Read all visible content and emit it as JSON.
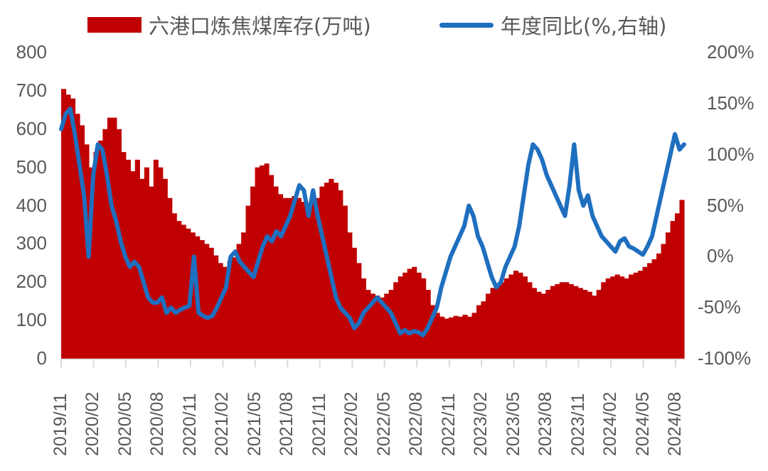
{
  "legend": {
    "bar_label": "六港口炼焦煤库存(万吨)",
    "line_label": "年度同比(%,右轴)"
  },
  "colors": {
    "bar": "#C00000",
    "line": "#1F6FBF",
    "axis_text": "#595959",
    "tick": "#D9D9D9"
  },
  "chart_data": {
    "type": "bar+line",
    "title": "",
    "legend_position": "top",
    "grid": false,
    "left_axis": {
      "label": "六港口炼焦煤库存(万吨)",
      "range": [
        0,
        800
      ],
      "ticks": [
        "0",
        "100",
        "200",
        "300",
        "400",
        "500",
        "600",
        "700",
        "800"
      ]
    },
    "right_axis": {
      "label": "年度同比(%,右轴)",
      "range": [
        -100,
        200
      ],
      "ticks": [
        "-100%",
        "-50%",
        "0%",
        "50%",
        "100%",
        "150%",
        "200%"
      ]
    },
    "x_ticks": [
      "2019/11",
      "2020/02",
      "2020/05",
      "2020/08",
      "2020/11",
      "2021/02",
      "2021/05",
      "2021/08",
      "2021/11",
      "2022/02",
      "2022/05",
      "2022/08",
      "2022/11",
      "2023/02",
      "2023/05",
      "2023/08",
      "2023/11",
      "2024/02",
      "2024/05",
      "2024/08"
    ],
    "x_tick_interval_weeks": 13,
    "series": [
      {
        "name": "六港口炼焦煤库存(万吨)",
        "type": "bar",
        "axis": "left",
        "frequency": "weekly (sampled ~biweekly from 2019/11)",
        "values": [
          705,
          690,
          680,
          640,
          610,
          560,
          500,
          540,
          570,
          600,
          630,
          630,
          600,
          540,
          520,
          490,
          520,
          470,
          500,
          450,
          520,
          500,
          470,
          420,
          380,
          360,
          350,
          340,
          330,
          320,
          310,
          300,
          290,
          270,
          250,
          240,
          255,
          265,
          300,
          330,
          400,
          450,
          500,
          505,
          510,
          480,
          450,
          430,
          420,
          420,
          425,
          420,
          410,
          400,
          410,
          420,
          450,
          460,
          470,
          460,
          440,
          400,
          330,
          290,
          250,
          210,
          180,
          170,
          165,
          160,
          170,
          180,
          200,
          215,
          225,
          235,
          240,
          225,
          210,
          180,
          140,
          120,
          110,
          105,
          108,
          112,
          110,
          115,
          110,
          120,
          140,
          150,
          170,
          185,
          195,
          200,
          210,
          220,
          230,
          225,
          215,
          200,
          185,
          175,
          170,
          180,
          190,
          195,
          200,
          200,
          195,
          190,
          185,
          180,
          175,
          165,
          180,
          200,
          210,
          215,
          220,
          215,
          210,
          220,
          225,
          230,
          240,
          250,
          260,
          275,
          300,
          330,
          360,
          380,
          415
        ]
      },
      {
        "name": "年度同比(%,右轴)",
        "type": "line",
        "axis": "right",
        "values": [
          125,
          140,
          145,
          120,
          90,
          60,
          0,
          80,
          110,
          105,
          80,
          50,
          35,
          15,
          0,
          -10,
          -5,
          -10,
          -25,
          -40,
          -45,
          -45,
          -40,
          -55,
          -50,
          -55,
          -52,
          -50,
          -48,
          0,
          -55,
          -58,
          -60,
          -58,
          -50,
          -40,
          -30,
          0,
          5,
          -5,
          -10,
          -15,
          -20,
          -5,
          10,
          20,
          15,
          25,
          20,
          30,
          40,
          55,
          70,
          65,
          40,
          65,
          40,
          20,
          0,
          -20,
          -40,
          -50,
          -55,
          -60,
          -70,
          -65,
          -55,
          -50,
          -45,
          -40,
          -45,
          -50,
          -55,
          -65,
          -75,
          -72,
          -75,
          -73,
          -74,
          -77,
          -70,
          -60,
          -50,
          -30,
          -15,
          0,
          10,
          20,
          30,
          50,
          40,
          20,
          10,
          -5,
          -20,
          -30,
          -25,
          -10,
          0,
          10,
          30,
          60,
          90,
          110,
          105,
          95,
          80,
          70,
          60,
          50,
          40,
          70,
          110,
          65,
          50,
          60,
          40,
          30,
          20,
          15,
          10,
          5,
          15,
          18,
          10,
          8,
          5,
          2,
          10,
          20,
          40,
          60,
          80,
          100,
          120,
          105,
          110
        ]
      }
    ],
    "annotations": []
  }
}
